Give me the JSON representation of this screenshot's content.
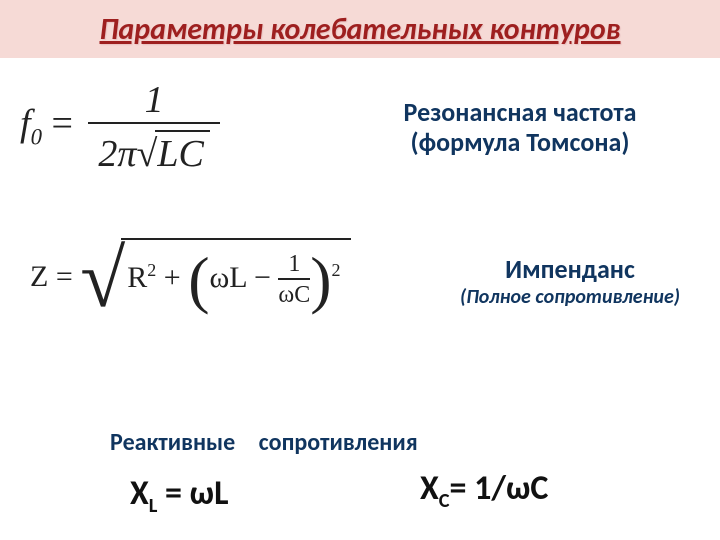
{
  "title": "Параметры колебательных контуров",
  "colors": {
    "title_band_bg": "#f6dad6",
    "title_text": "#9e1f1f",
    "label_text": "#10355f",
    "formula_text": "#222222",
    "react_formula_text": "#111111",
    "page_bg": "#ffffff"
  },
  "typography": {
    "title_fontsize": 30,
    "label_fontsize": 26,
    "imp_sub_fontsize": 20,
    "react_label_fontsize": 24,
    "react_form_fontsize": 34,
    "formula_font": "Times New Roman"
  },
  "thomson": {
    "formula_lhs": "f",
    "formula_sub": "0",
    "formula_eq": "=",
    "num": "1",
    "den_2pi": "2π",
    "den_sqrt": "LC",
    "label_line1": "Резонансная частота",
    "label_line2": "(формула Томсона)"
  },
  "impedance": {
    "Z": "Z",
    "eq": "=",
    "R": "R",
    "plus": "+",
    "omegaL": "ωL",
    "minus": "−",
    "frac_num": "1",
    "frac_den": "ωC",
    "sq": "2",
    "label_line1": "Импенданс",
    "label_line2": "(Полное сопротивление)"
  },
  "reactances": {
    "header": "Реактивные сопротивления",
    "xl_X": "X",
    "xl_sub": "L",
    "xl_rest": " = ωL",
    "xc_X": "X",
    "xc_sub": "C",
    "xc_rest": "= 1/ωC"
  }
}
